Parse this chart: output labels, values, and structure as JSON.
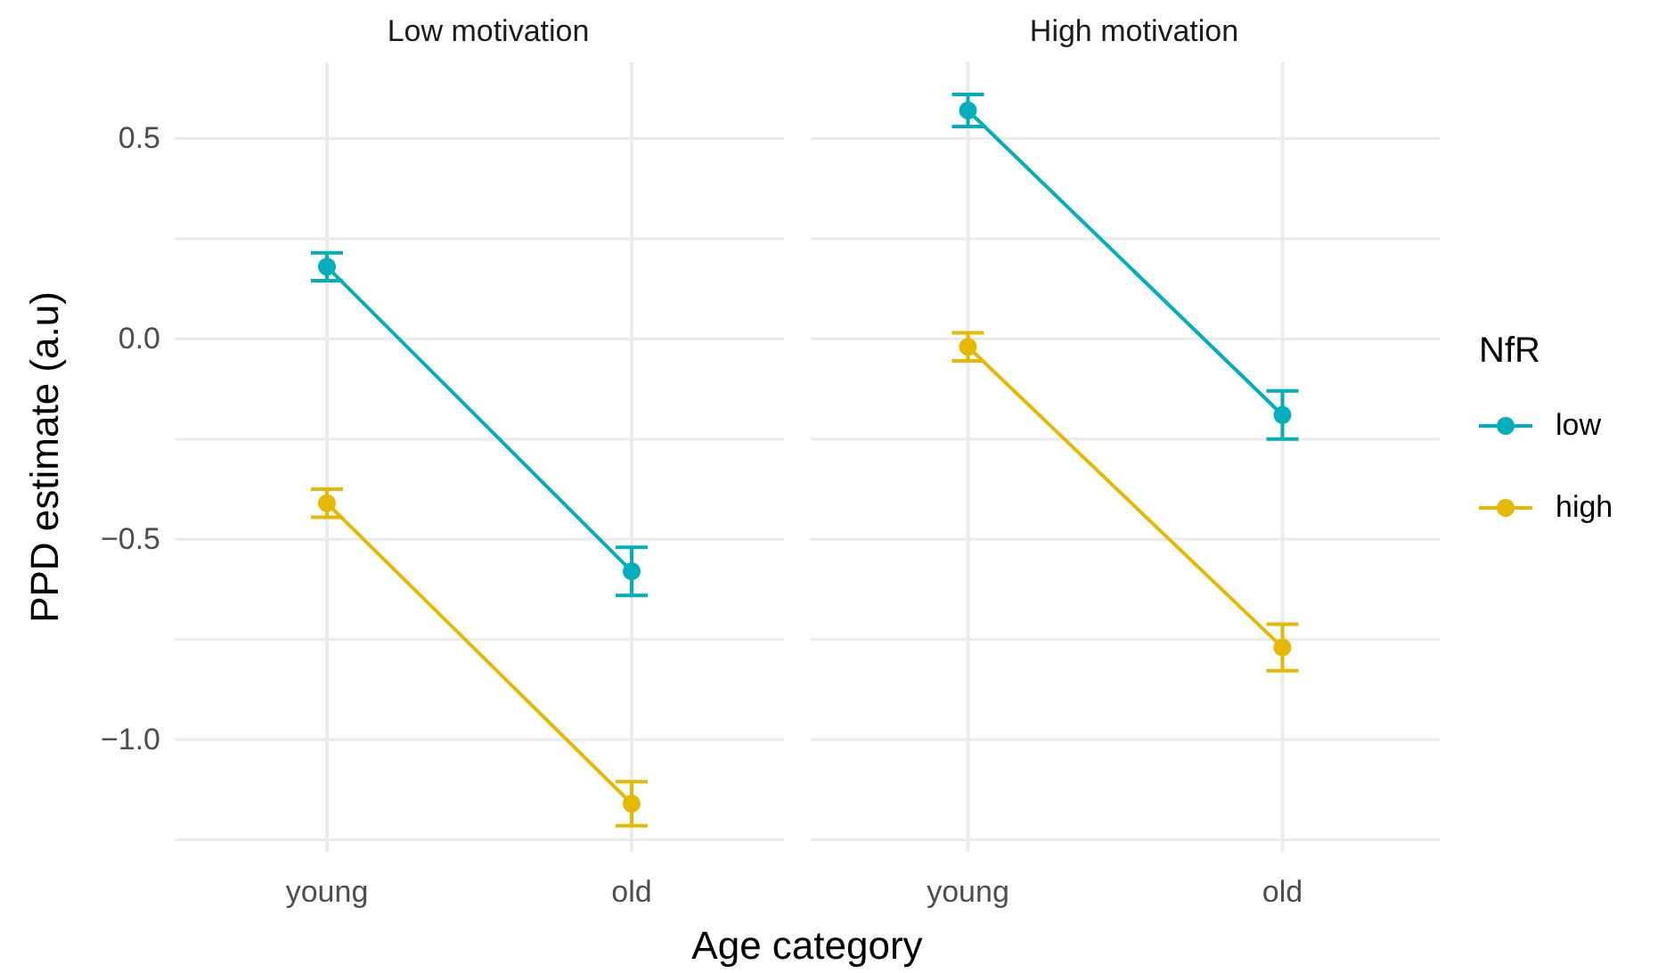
{
  "chart_data": [
    {
      "type": "line",
      "title": "Low motivation",
      "xlabel": "Age category",
      "ylabel": "PPD estimate (a.u)",
      "categories": [
        "young",
        "old"
      ],
      "series": [
        {
          "color": "#00afbb",
          "values": [
            0.18,
            -0.58
          ],
          "errors": [
            0.035,
            0.06
          ]
        },
        {
          "color": "#e7b800",
          "values": [
            -0.41,
            -1.16
          ],
          "errors": [
            0.035,
            0.055
          ]
        }
      ],
      "ylim": [
        -1.28,
        0.69
      ],
      "yticks": [
        {
          "value": -1.25,
          "label": null
        },
        {
          "value": -1.0,
          "label": "−1.0"
        },
        {
          "value": -0.75,
          "label": null
        },
        {
          "value": -0.5,
          "label": "−0.5"
        },
        {
          "value": -0.25,
          "label": null
        },
        {
          "value": 0,
          "label": "0.0"
        },
        {
          "value": 0.25,
          "label": null
        },
        0.5
      ],
      "grid": true,
      "marker": "circle",
      "legend": false
    },
    {
      "type": "line",
      "title": "High motivation",
      "legend_title": "NfR",
      "categories": [
        "young",
        "old"
      ],
      "series": [
        {
          "name": "low",
          "color": "#00afbb",
          "values": [
            0.57,
            -0.19
          ],
          "errors": [
            0.04,
            0.06
          ]
        },
        {
          "name": "high",
          "color": "#e7b800",
          "values": [
            -0.02,
            -0.77
          ],
          "errors": [
            0.035,
            0.058
          ]
        }
      ],
      "ylim": [
        -1.28,
        0.69
      ],
      "yticks": [
        {
          "value": -1.25,
          "label": null
        },
        {
          "value": -1.0,
          "label": null
        },
        {
          "value": -0.75,
          "label": null
        },
        {
          "value": -0.5,
          "label": null
        },
        {
          "value": -0.25,
          "label": null
        },
        {
          "value": 0.0,
          "label": null
        },
        {
          "value": 0.25,
          "label": null
        },
        {
          "value": 0.5,
          "label": null
        }
      ],
      "grid": true,
      "marker": "circle",
      "legend": "right",
      "tick_labels": "x"
    }
  ]
}
